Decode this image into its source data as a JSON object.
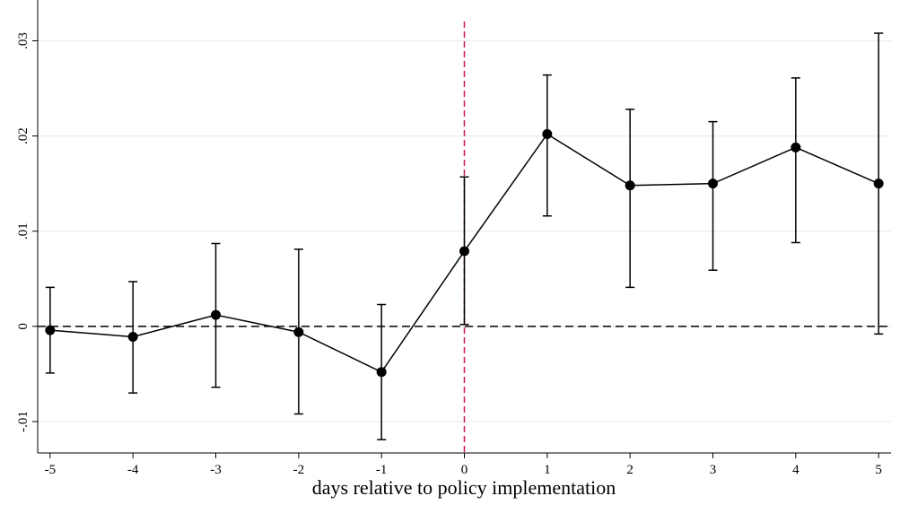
{
  "chart_data": {
    "type": "errorbar-line",
    "x_label": "days relative to policy implementation",
    "x": [
      -5,
      -4,
      -3,
      -2,
      -1,
      0,
      1,
      2,
      3,
      4,
      5
    ],
    "series": [
      {
        "color": "#000000",
        "values": [
          -0.0004,
          -0.0011,
          0.0012,
          -0.0006,
          -0.0048,
          0.0079,
          0.0202,
          0.0148,
          0.015,
          0.0188,
          0.015
        ],
        "lower": [
          -0.0049,
          -0.007,
          -0.0064,
          -0.0092,
          -0.0119,
          0.0002,
          0.0116,
          0.0041,
          0.0059,
          0.0088,
          -0.0008
        ],
        "upper": [
          0.0041,
          0.0047,
          0.0087,
          0.0081,
          0.0023,
          0.0157,
          0.0264,
          0.0228,
          0.0215,
          0.0261,
          0.0308
        ]
      }
    ],
    "xlim": [
      -5.15,
      5.15
    ],
    "ylim": [
      -0.0133,
      0.0324
    ],
    "xticks": [
      -5,
      -4,
      -3,
      -2,
      -1,
      0,
      1,
      2,
      3,
      4,
      5
    ],
    "yticks": [
      {
        "value": -0.01,
        "label": "-.01"
      },
      0,
      {
        "value": 0.01,
        "label": ".01"
      },
      {
        "value": 0.02,
        "label": ".02"
      },
      {
        "value": 0.03,
        "label": ".03"
      }
    ],
    "grid": true,
    "grid_color": "#e8eef0",
    "hline": {
      "value": 0,
      "color": "#000000"
    },
    "vline": {
      "value": 0,
      "color": "#d0174e"
    }
  }
}
